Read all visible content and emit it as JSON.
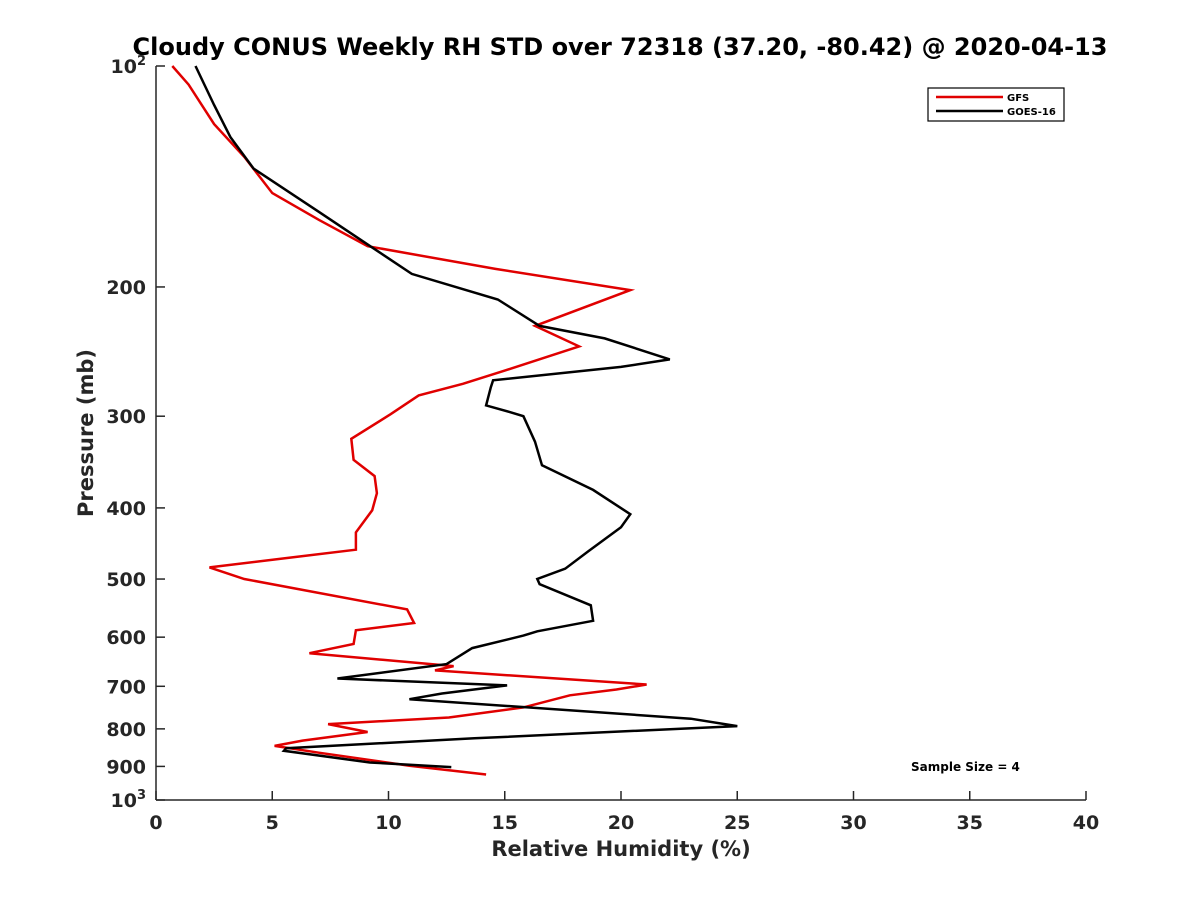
{
  "chart_data": {
    "type": "line",
    "title": "Cloudy CONUS Weekly RH STD over 72318 (37.20, -80.42) @ 2020-04-13",
    "xlabel": "Relative Humidity (%)",
    "ylabel": "Pressure (mb)",
    "xlim": [
      0,
      40
    ],
    "ylim": [
      100,
      1000
    ],
    "yscale": "log",
    "y_reversed": true,
    "grid": false,
    "x_ticks": [
      "0",
      "5",
      "10",
      "15",
      "20",
      "25",
      "30",
      "35",
      "40"
    ],
    "y_ticks": [
      {
        "value": 100,
        "base": "10",
        "exp": "2"
      },
      {
        "value": 200,
        "label": "200"
      },
      {
        "value": 300,
        "label": "300"
      },
      {
        "value": 400,
        "label": "400"
      },
      {
        "value": 500,
        "label": "500"
      },
      {
        "value": 600,
        "label": "600"
      },
      {
        "value": 700,
        "label": "700"
      },
      {
        "value": 800,
        "label": "800"
      },
      {
        "value": 900,
        "label": "900"
      },
      {
        "value": 1000,
        "base": "10",
        "exp": "3"
      }
    ],
    "legend": {
      "position": "top-right"
    },
    "annotation": "Sample Size = 4",
    "series": [
      {
        "name": "GFS",
        "color": "#e00000",
        "points": [
          [
            0.7,
            100
          ],
          [
            1.4,
            106
          ],
          [
            2.5,
            120
          ],
          [
            3.8,
            133
          ],
          [
            5.0,
            149
          ],
          [
            7.0,
            162
          ],
          [
            9.1,
            176
          ],
          [
            14.6,
            189
          ],
          [
            20.4,
            202
          ],
          [
            16.3,
            226
          ],
          [
            18.2,
            241
          ],
          [
            15.0,
            260
          ],
          [
            13.2,
            271
          ],
          [
            11.3,
            281
          ],
          [
            10.1,
            298
          ],
          [
            8.4,
            322
          ],
          [
            8.5,
            344
          ],
          [
            9.4,
            362
          ],
          [
            9.5,
            382
          ],
          [
            9.3,
            403
          ],
          [
            8.6,
            432
          ],
          [
            8.6,
            456
          ],
          [
            5.9,
            467
          ],
          [
            2.3,
            482
          ],
          [
            3.8,
            500
          ],
          [
            10.8,
            550
          ],
          [
            11.1,
            574
          ],
          [
            8.6,
            587
          ],
          [
            8.5,
            613
          ],
          [
            6.6,
            631
          ],
          [
            12.8,
            657
          ],
          [
            12.0,
            666
          ],
          [
            21.1,
            696
          ],
          [
            19.8,
            707
          ],
          [
            17.8,
            720
          ],
          [
            15.8,
            748
          ],
          [
            12.6,
            772
          ],
          [
            7.4,
            788
          ],
          [
            9.1,
            808
          ],
          [
            6.3,
            830
          ],
          [
            5.1,
            844
          ],
          [
            7.0,
            862
          ],
          [
            10.9,
            898
          ],
          [
            14.2,
            923
          ]
        ]
      },
      {
        "name": "GOES-16",
        "color": "#000000",
        "points": [
          [
            1.7,
            100
          ],
          [
            2.5,
            113
          ],
          [
            3.2,
            125
          ],
          [
            4.2,
            138
          ],
          [
            7.0,
            158
          ],
          [
            9.1,
            175
          ],
          [
            11.0,
            192
          ],
          [
            14.7,
            208
          ],
          [
            16.5,
            226
          ],
          [
            19.3,
            235
          ],
          [
            22.1,
            251
          ],
          [
            20.0,
            257
          ],
          [
            14.5,
            268
          ],
          [
            14.4,
            274
          ],
          [
            14.2,
            290
          ],
          [
            15.2,
            296
          ],
          [
            15.8,
            300
          ],
          [
            16.3,
            325
          ],
          [
            16.6,
            350
          ],
          [
            18.8,
            378
          ],
          [
            20.4,
            408
          ],
          [
            20.0,
            425
          ],
          [
            18.6,
            458
          ],
          [
            17.6,
            484
          ],
          [
            16.4,
            500
          ],
          [
            16.5,
            508
          ],
          [
            18.7,
            543
          ],
          [
            18.8,
            570
          ],
          [
            16.4,
            589
          ],
          [
            15.8,
            597
          ],
          [
            13.6,
            621
          ],
          [
            12.5,
            653
          ],
          [
            7.8,
            683
          ],
          [
            15.1,
            698
          ],
          [
            12.3,
            716
          ],
          [
            10.9,
            729
          ],
          [
            23.0,
            775
          ],
          [
            25.0,
            793
          ],
          [
            13.7,
            824
          ],
          [
            5.6,
            850
          ],
          [
            5.5,
            857
          ],
          [
            9.2,
            889
          ],
          [
            12.7,
            902
          ]
        ]
      }
    ]
  }
}
